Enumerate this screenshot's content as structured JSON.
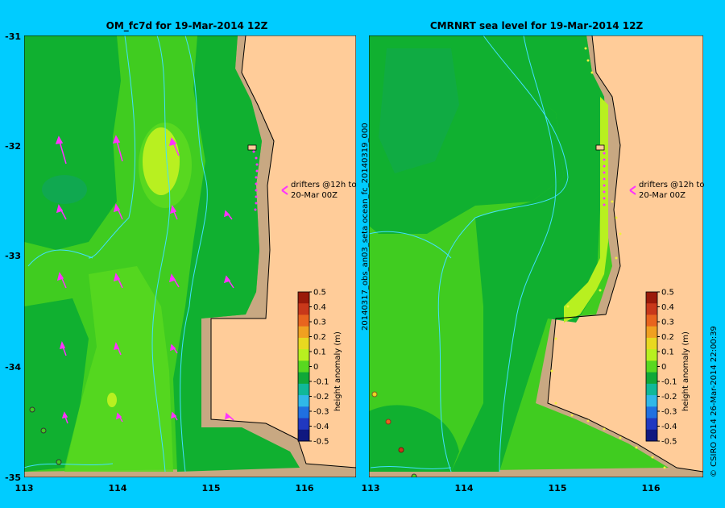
{
  "left_map": {
    "title": "OM_fc7d for 19-Mar-2014 12Z",
    "annotation_line1": "drifters @12h to",
    "annotation_line2": "20-Mar 00Z"
  },
  "right_map": {
    "title": "CMRNRT sea level  for 19-Mar-2014 12Z",
    "annotation_line1": "drifters @12h to",
    "annotation_line2": "20-Mar 00Z",
    "side_label": "20140317_obs_an03_seta   ocean_fc_20140319_000"
  },
  "axes": {
    "lon_ticks": [
      "113",
      "114",
      "115",
      "116"
    ],
    "lat_ticks": [
      "-31",
      "-32",
      "-33",
      "-34",
      "-35"
    ]
  },
  "colorbar": {
    "label": "height anomaly (m)",
    "ticks": [
      "0.5",
      "0.4",
      "0.3",
      "0.2",
      "0.1",
      "0",
      "-0.1",
      "-0.2",
      "-0.3",
      "-0.4",
      "-0.5"
    ],
    "colors": [
      "#9a1a0a",
      "#c8381a",
      "#e8641e",
      "#f0a020",
      "#e8d820",
      "#b8f020",
      "#58d820",
      "#10a838",
      "#10b898",
      "#30b8e8",
      "#2070e0",
      "#2038c0",
      "#101880"
    ]
  },
  "credit": "© CSIRO 2014   26-Mar-2014 22:00:39",
  "colors": {
    "background": "#00ccff",
    "land": "#ffcc99",
    "shelf": "#c8a882",
    "drifter": "#ff33ff"
  }
}
